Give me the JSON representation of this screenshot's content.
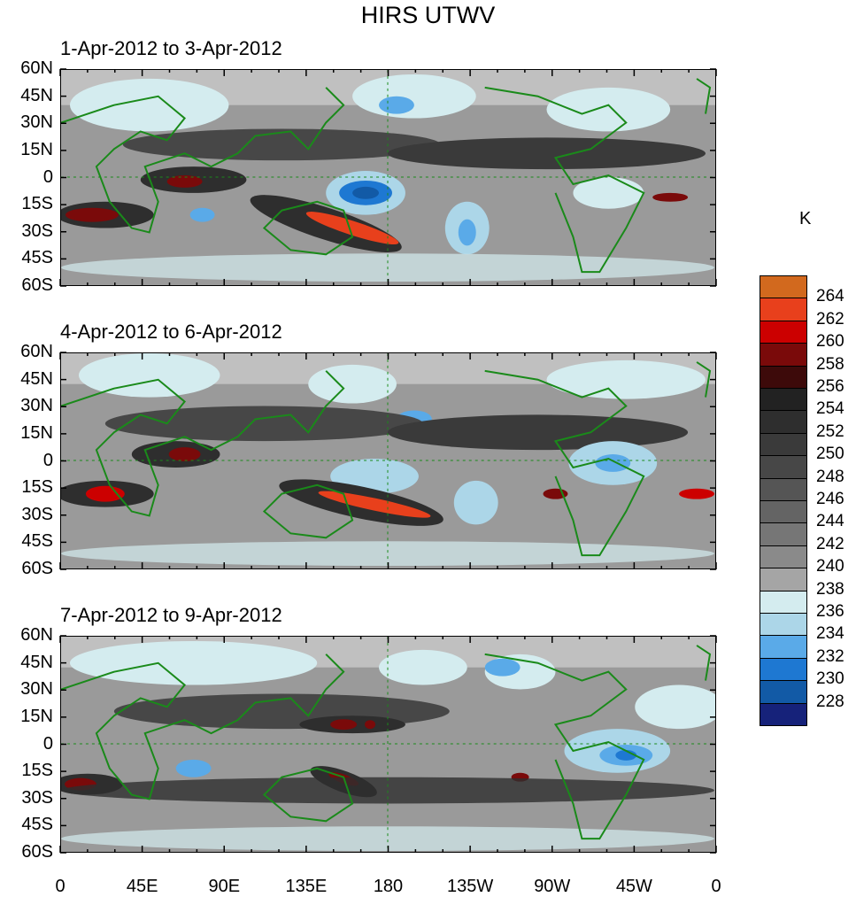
{
  "title": "HIRS UTWV",
  "panels": [
    {
      "title": "1-Apr-2012 to 3-Apr-2012"
    },
    {
      "title": "4-Apr-2012 to 6-Apr-2012"
    },
    {
      "title": "7-Apr-2012 to 9-Apr-2012"
    }
  ],
  "lat_labels": [
    "60N",
    "45N",
    "30N",
    "15N",
    "0",
    "15S",
    "30S",
    "45S",
    "60S"
  ],
  "lon_labels": [
    "0",
    "45E",
    "90E",
    "135E",
    "180",
    "135W",
    "90W",
    "45W",
    "0"
  ],
  "colorbar": {
    "unit": "K",
    "labels": [
      "264",
      "262",
      "260",
      "258",
      "256",
      "254",
      "252",
      "250",
      "248",
      "246",
      "244",
      "242",
      "240",
      "238",
      "236",
      "234",
      "232",
      "230",
      "228"
    ],
    "colors": [
      "#d2691e",
      "#e8401c",
      "#cc0000",
      "#7a0a0a",
      "#3d0a0a",
      "#222222",
      "#2e2e2e",
      "#3a3a3a",
      "#474747",
      "#555555",
      "#646464",
      "#767676",
      "#8a8a8a",
      "#a5a5a5",
      "#d4ecef",
      "#acd6e8",
      "#5aaae8",
      "#1e78d2",
      "#125aa6",
      "#16227a"
    ]
  },
  "map": {
    "coastline_color": "#1a8a1a",
    "lat_range": [
      -60,
      60
    ],
    "lon_range": [
      0,
      360
    ]
  }
}
